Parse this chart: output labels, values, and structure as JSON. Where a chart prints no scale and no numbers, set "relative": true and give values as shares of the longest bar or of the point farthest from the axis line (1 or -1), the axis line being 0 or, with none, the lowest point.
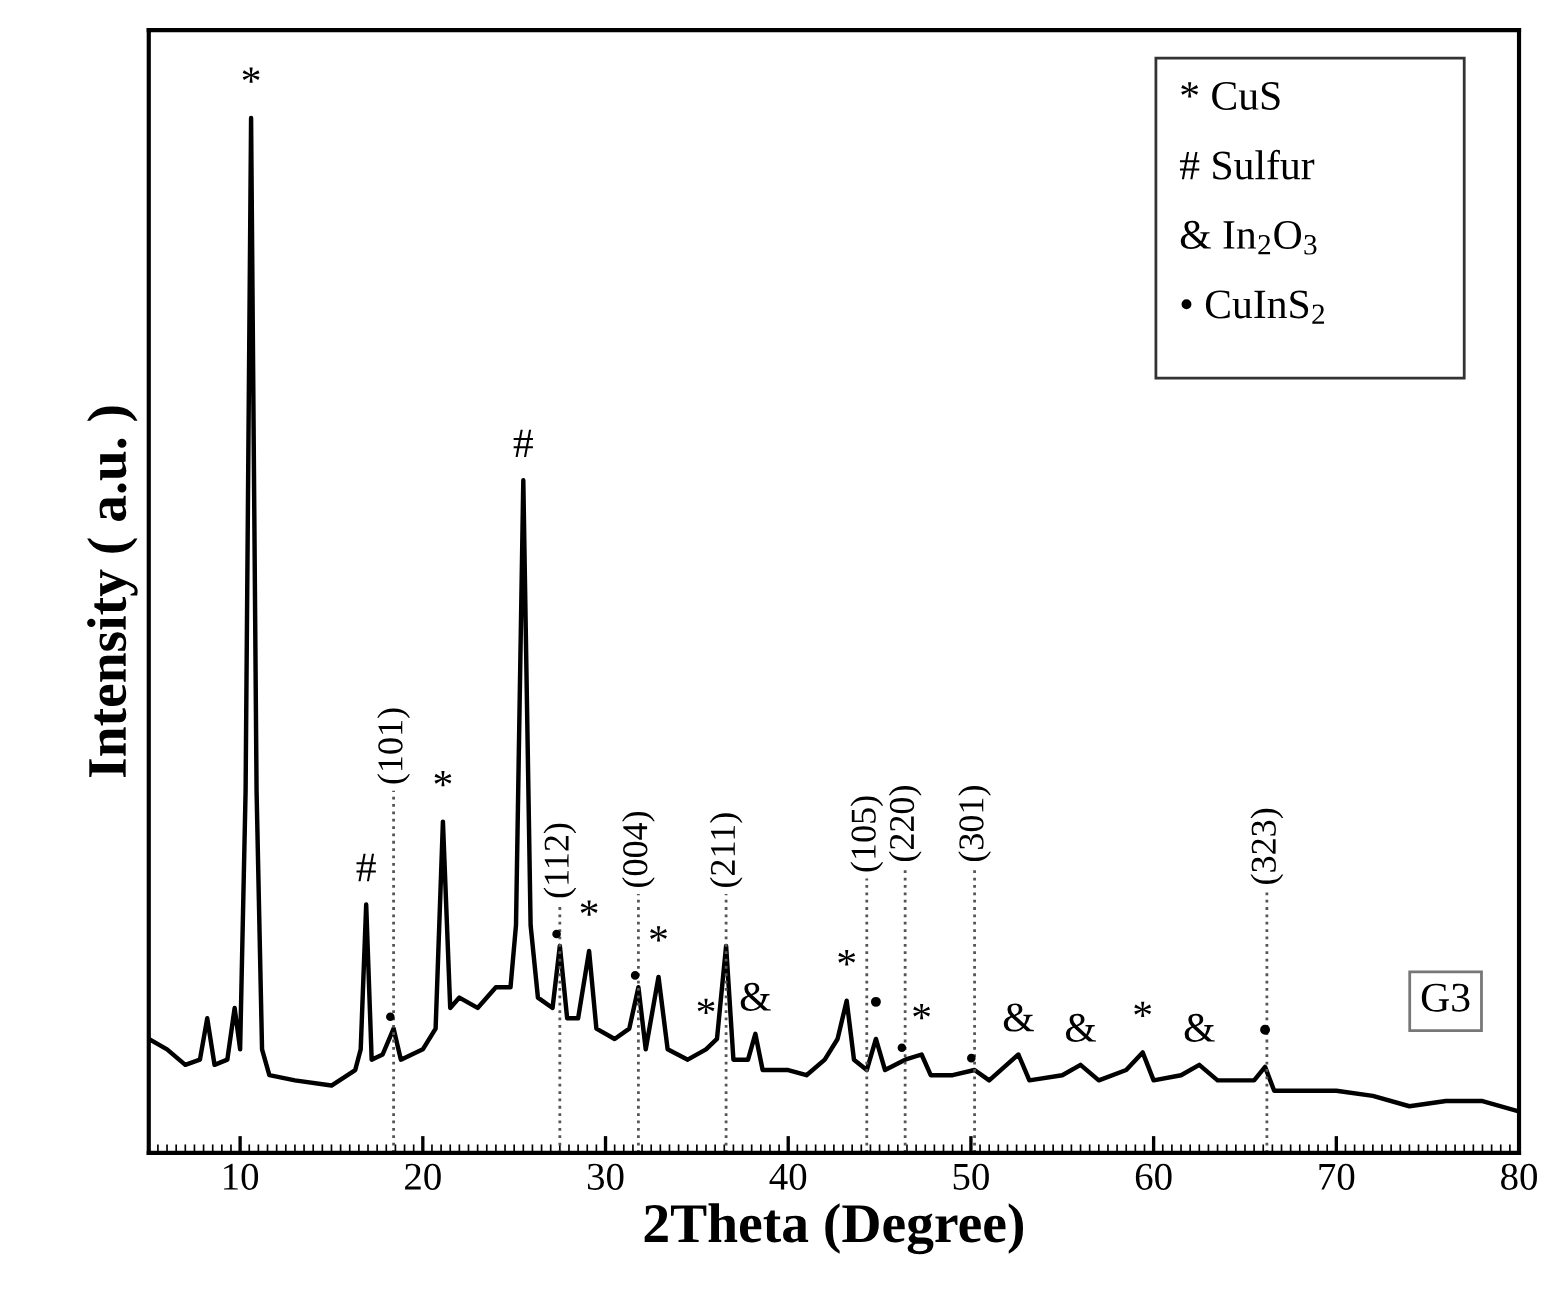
{
  "chart_data": {
    "type": "line",
    "relative": true,
    "xlabel": "2Theta (Degree)",
    "ylabel": "Intensity ( a.u. )",
    "xlim": [
      5,
      80
    ],
    "xticks": [
      10,
      20,
      30,
      40,
      50,
      60,
      70,
      80
    ],
    "tick_labels": "x",
    "grid": false,
    "marker": "none",
    "line_style": "solid",
    "series": [
      {
        "color": "#000000",
        "x": [
          5,
          6,
          7,
          7.8,
          8.2,
          8.6,
          9.3,
          9.7,
          10.0,
          10.3,
          10.6,
          10.9,
          11.2,
          11.6,
          13,
          15,
          16.3,
          16.6,
          16.9,
          17.2,
          17.8,
          18.4,
          18.8,
          20,
          20.7,
          21.1,
          21.5,
          22,
          23,
          24,
          24.8,
          25.1,
          25.5,
          25.9,
          26.3,
          27.1,
          27.5,
          27.9,
          28.5,
          29.1,
          29.5,
          30.5,
          31.3,
          31.8,
          32.2,
          32.9,
          33.4,
          34.5,
          35.5,
          36.1,
          36.6,
          37.0,
          37.8,
          38.2,
          38.6,
          40,
          41,
          42,
          42.7,
          43.2,
          43.6,
          44.3,
          44.8,
          45.3,
          46.4,
          47.3,
          47.8,
          49,
          50.2,
          51,
          52.6,
          53.2,
          55,
          56,
          57,
          58.5,
          59.4,
          60,
          61.5,
          62.5,
          63.5,
          65.5,
          66.1,
          66.6,
          68,
          70,
          72,
          74,
          76,
          78,
          80
        ],
        "values": [
          0.11,
          0.1,
          0.085,
          0.09,
          0.13,
          0.085,
          0.09,
          0.14,
          0.1,
          0.35,
          1.0,
          0.35,
          0.1,
          0.075,
          0.07,
          0.065,
          0.08,
          0.1,
          0.24,
          0.09,
          0.095,
          0.12,
          0.09,
          0.1,
          0.12,
          0.32,
          0.14,
          0.15,
          0.14,
          0.16,
          0.16,
          0.22,
          0.65,
          0.22,
          0.15,
          0.14,
          0.2,
          0.13,
          0.13,
          0.195,
          0.12,
          0.11,
          0.12,
          0.16,
          0.1,
          0.17,
          0.1,
          0.09,
          0.1,
          0.11,
          0.2,
          0.09,
          0.09,
          0.115,
          0.08,
          0.08,
          0.075,
          0.09,
          0.11,
          0.147,
          0.09,
          0.08,
          0.11,
          0.08,
          0.09,
          0.095,
          0.075,
          0.075,
          0.08,
          0.07,
          0.095,
          0.07,
          0.075,
          0.085,
          0.07,
          0.08,
          0.097,
          0.07,
          0.075,
          0.085,
          0.07,
          0.07,
          0.083,
          0.06,
          0.06,
          0.06,
          0.055,
          0.045,
          0.05,
          0.05,
          0.04
        ]
      }
    ],
    "ref_lines": [
      {
        "axis": "x",
        "value": 18.4,
        "line_style": "dotted"
      },
      {
        "axis": "x",
        "value": 27.5,
        "line_style": "dotted"
      },
      {
        "axis": "x",
        "value": 31.8,
        "line_style": "dotted"
      },
      {
        "axis": "x",
        "value": 36.6,
        "line_style": "dotted"
      },
      {
        "axis": "x",
        "value": 44.3,
        "line_style": "dotted"
      },
      {
        "axis": "x",
        "value": 46.4,
        "line_style": "dotted"
      },
      {
        "axis": "x",
        "value": 50.2,
        "line_style": "dotted"
      },
      {
        "axis": "x",
        "value": 66.2,
        "line_style": "dotted"
      }
    ],
    "annotations": [
      "* CuS",
      "# Sulfur",
      "& In$_{2}$O$_{3}$",
      "• CuInS$_{2}$",
      "G3",
      {
        "text": "(101)",
        "x": 18.4,
        "y": 0.35
      },
      {
        "text": "(112)",
        "x": 27.5,
        "y": 0.24
      },
      {
        "text": "(004)",
        "x": 31.8,
        "y": 0.25
      },
      {
        "text": "(211)",
        "x": 36.6,
        "y": 0.25
      },
      {
        "text": "(105)",
        "x": 44.3,
        "y": 0.265
      },
      {
        "text": "(220)",
        "x": 46.4,
        "y": 0.275
      },
      {
        "text": "(301)",
        "x": 50.2,
        "y": 0.275
      },
      {
        "text": "(323)",
        "x": 66.2,
        "y": 0.253
      },
      {
        "text": "*",
        "x": 10.6,
        "y": 1.0
      },
      {
        "text": "#",
        "x": 16.9,
        "y": 0.24
      },
      {
        "text": "•",
        "x": 18.4,
        "y": 0.12
      },
      {
        "text": "*",
        "x": 21.1,
        "y": 0.32
      },
      {
        "text": "#",
        "x": 25.5,
        "y": 0.65
      },
      {
        "text": "•",
        "x": 27.5,
        "y": 0.2
      },
      {
        "text": "*",
        "x": 29.1,
        "y": 0.195
      },
      {
        "text": "•",
        "x": 31.8,
        "y": 0.16
      },
      {
        "text": "*",
        "x": 32.9,
        "y": 0.17
      },
      {
        "text": "*",
        "x": 35.5,
        "y": 0.1
      },
      {
        "text": "&",
        "x": 38.2,
        "y": 0.115
      },
      {
        "text": "*",
        "x": 43.2,
        "y": 0.147
      },
      {
        "text": "•",
        "x": 44.8,
        "y": 0.11
      },
      {
        "text": "•",
        "x": 46.4,
        "y": 0.09
      },
      {
        "text": "*",
        "x": 47.3,
        "y": 0.095
      },
      {
        "text": "•",
        "x": 50.2,
        "y": 0.08
      },
      {
        "text": "&",
        "x": 52.6,
        "y": 0.095
      },
      {
        "text": "&",
        "x": 56,
        "y": 0.085
      },
      {
        "text": "*",
        "x": 59.4,
        "y": 0.097
      },
      {
        "text": "&",
        "x": 62.5,
        "y": 0.085
      },
      {
        "text": "•",
        "x": 66.1,
        "y": 0.083
      }
    ]
  }
}
